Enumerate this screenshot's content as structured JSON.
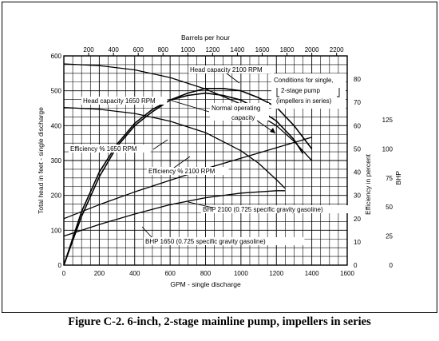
{
  "chart_data": {
    "type": "line",
    "title": "",
    "top_axis": {
      "label": "Barrels per hour",
      "ticks": [
        200,
        400,
        600,
        800,
        1000,
        1200,
        1400,
        1600,
        1800,
        2000,
        2200
      ],
      "gpm_per_unit": 0.7
    },
    "x_axis": {
      "label": "GPM - single discharge",
      "range": [
        0,
        1600
      ],
      "ticks": [
        0,
        200,
        400,
        600,
        800,
        1000,
        1200,
        1400,
        1600
      ]
    },
    "y_left": {
      "label": "Total head in feet - single discharge",
      "range": [
        0,
        600
      ],
      "ticks": [
        0,
        100,
        200,
        300,
        400,
        500,
        600
      ]
    },
    "y_eff": {
      "label": "Efficiency in percent",
      "range": [
        0,
        90
      ],
      "ticks": [
        0,
        10,
        20,
        30,
        40,
        50,
        60,
        70,
        80
      ]
    },
    "y_bhp": {
      "label": "BHP",
      "range": [
        0,
        180
      ],
      "ticks": [
        0,
        25,
        50,
        75,
        100,
        125
      ]
    },
    "grid": true,
    "series": [
      {
        "name": "Head capacity 2100 RPM",
        "axis": "head",
        "x": [
          0,
          200,
          400,
          600,
          800,
          1000,
          1200,
          1300,
          1400
        ],
        "y": [
          577,
          572,
          560,
          538,
          505,
          462,
          400,
          355,
          300
        ]
      },
      {
        "name": "Head capacity 1650 RPM",
        "axis": "head",
        "x": [
          0,
          200,
          400,
          600,
          800,
          1000,
          1100,
          1200,
          1250
        ],
        "y": [
          452,
          447,
          435,
          413,
          380,
          328,
          292,
          245,
          220
        ]
      },
      {
        "name": "Efficiency % 1650 RPM",
        "axis": "eff",
        "x": [
          0,
          100,
          200,
          300,
          400,
          500,
          600,
          700,
          800,
          900,
          1000,
          1100,
          1200,
          1300,
          1350
        ],
        "y": [
          0,
          23,
          40,
          52,
          61,
          67,
          71,
          73,
          74,
          73,
          71,
          67,
          62,
          54,
          48
        ]
      },
      {
        "name": "Efficiency % 2100 RPM",
        "axis": "eff",
        "x": [
          0,
          100,
          200,
          300,
          400,
          500,
          600,
          700,
          800,
          900,
          1000,
          1100,
          1200,
          1300,
          1400
        ],
        "y": [
          0,
          21,
          38,
          51,
          60,
          66,
          71,
          74,
          76,
          76,
          75,
          72,
          68,
          60,
          50
        ]
      },
      {
        "name": "BHP 2100 (0.725 specific gravity gasoline)",
        "axis": "bhp",
        "x": [
          0,
          200,
          400,
          600,
          800,
          1000,
          1200,
          1400
        ],
        "y": [
          40,
          52,
          63,
          73,
          83,
          92,
          101,
          110
        ]
      },
      {
        "name": "BHP 1650 (0.725 specific gravity gasoline)",
        "axis": "bhp",
        "x": [
          0,
          200,
          400,
          600,
          800,
          1000,
          1200,
          1250
        ],
        "y": [
          25,
          35,
          44,
          52,
          58,
          62,
          64,
          64
        ]
      }
    ],
    "annotations": [
      {
        "key": "conditions_line1",
        "text": "Conditions for single,"
      },
      {
        "key": "conditions_line2",
        "text": "2-stage pump"
      },
      {
        "key": "conditions_line3",
        "text": "(impellers in series)"
      },
      {
        "key": "normal_line1",
        "text": "Normal operating"
      },
      {
        "key": "normal_line2",
        "text": "capacity"
      }
    ]
  },
  "caption": "Figure C-2.  6-inch, 2-stage mainline pump, impellers in series"
}
